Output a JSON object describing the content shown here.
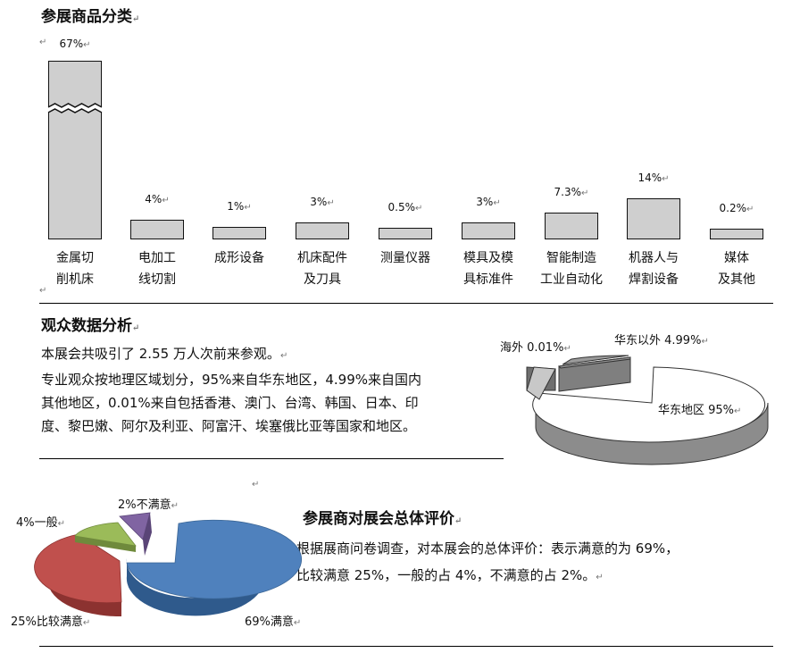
{
  "section1": {
    "title": "参展商品分类",
    "categories": [
      {
        "pct": "67%",
        "line1": "金属切",
        "line2": "削机床"
      },
      {
        "pct": "4%",
        "line1": "电加工",
        "line2": "线切割"
      },
      {
        "pct": "1%",
        "line1": "成形设备",
        "line2": ""
      },
      {
        "pct": "3%",
        "line1": "机床配件",
        "line2": "及刀具"
      },
      {
        "pct": "0.5%",
        "line1": "测量仪器",
        "line2": ""
      },
      {
        "pct": "3%",
        "line1": "模具及模",
        "line2": "具标准件"
      },
      {
        "pct": "7.3%",
        "line1": "智能制造",
        "line2": "工业自动化"
      },
      {
        "pct": "14%",
        "line1": "机器人与",
        "line2": "焊割设备"
      },
      {
        "pct": "0.2%",
        "line1": "媒体",
        "line2": "及其他"
      }
    ]
  },
  "chart_data": [
    {
      "type": "bar",
      "title": "",
      "categories": [
        "金属切削机床",
        "电加工线切割",
        "成形设备",
        "机床配件及刀具",
        "测量仪器",
        "模具及模具标准件",
        "智能制造工业自动化",
        "机器人与焊割设备",
        "媒体及其他"
      ],
      "values": [
        67,
        4,
        1,
        3,
        0.5,
        3,
        7.3,
        14,
        0.2
      ],
      "data_labels": [
        "67%",
        "4%",
        "1%",
        "3%",
        "0.5%",
        "3%",
        "7.3%",
        "14%",
        "0.2%"
      ],
      "axis_break": true,
      "grid": false
    },
    {
      "type": "pie",
      "labels": [
        "华东地区",
        "华东以外",
        "海外"
      ],
      "values": [
        95,
        4.99,
        0.01
      ],
      "data_labels": [
        "华东地区 95%",
        "华东以外  4.99%",
        "海外 0.01%"
      ],
      "colors": [
        "#ffffff",
        "#9a9a9a",
        "#c8c8c8"
      ]
    },
    {
      "type": "pie",
      "labels": [
        "满意",
        "比较满意",
        "一般",
        "不满意"
      ],
      "values": [
        69,
        25,
        4,
        2
      ],
      "data_labels": [
        "69%满意",
        "25%比较满意",
        "4%一般",
        "2%不满意"
      ],
      "colors": [
        "#4f81bd",
        "#c0504d",
        "#9bbb59",
        "#8064a2"
      ]
    }
  ],
  "section2": {
    "title": "观众数据分析",
    "lines": [
      "本展会共吸引了 2.55 万人次前来参观。",
      "专业观众按地理区域划分，95%来自华东地区，4.99%来自国内",
      "其他地区，0.01%来自包括香港、澳门、台湾、韩国、日本、印",
      "度、黎巴嫩、阿尔及利亚、阿富汗、埃塞俄比亚等国家和地区。"
    ],
    "pie_labels": {
      "main": "华东地区 95%",
      "outside": "华东以外  4.99%",
      "overseas": "海外 0.01%"
    }
  },
  "section3": {
    "title": "参展商对展会总体评价",
    "lines": [
      "根据展商问卷调查，对本展会的总体评价：表示满意的为 69%，",
      "比较满意 25%，一般的占 4%，不满意的占 2%。"
    ],
    "pie_labels": {
      "satisfied": "69%满意",
      "fairly": "25%比较满意",
      "average": "4%一般",
      "dissatisfied": "2%不满意"
    }
  },
  "marks": {
    "para": "↵",
    "plain": "↵"
  }
}
